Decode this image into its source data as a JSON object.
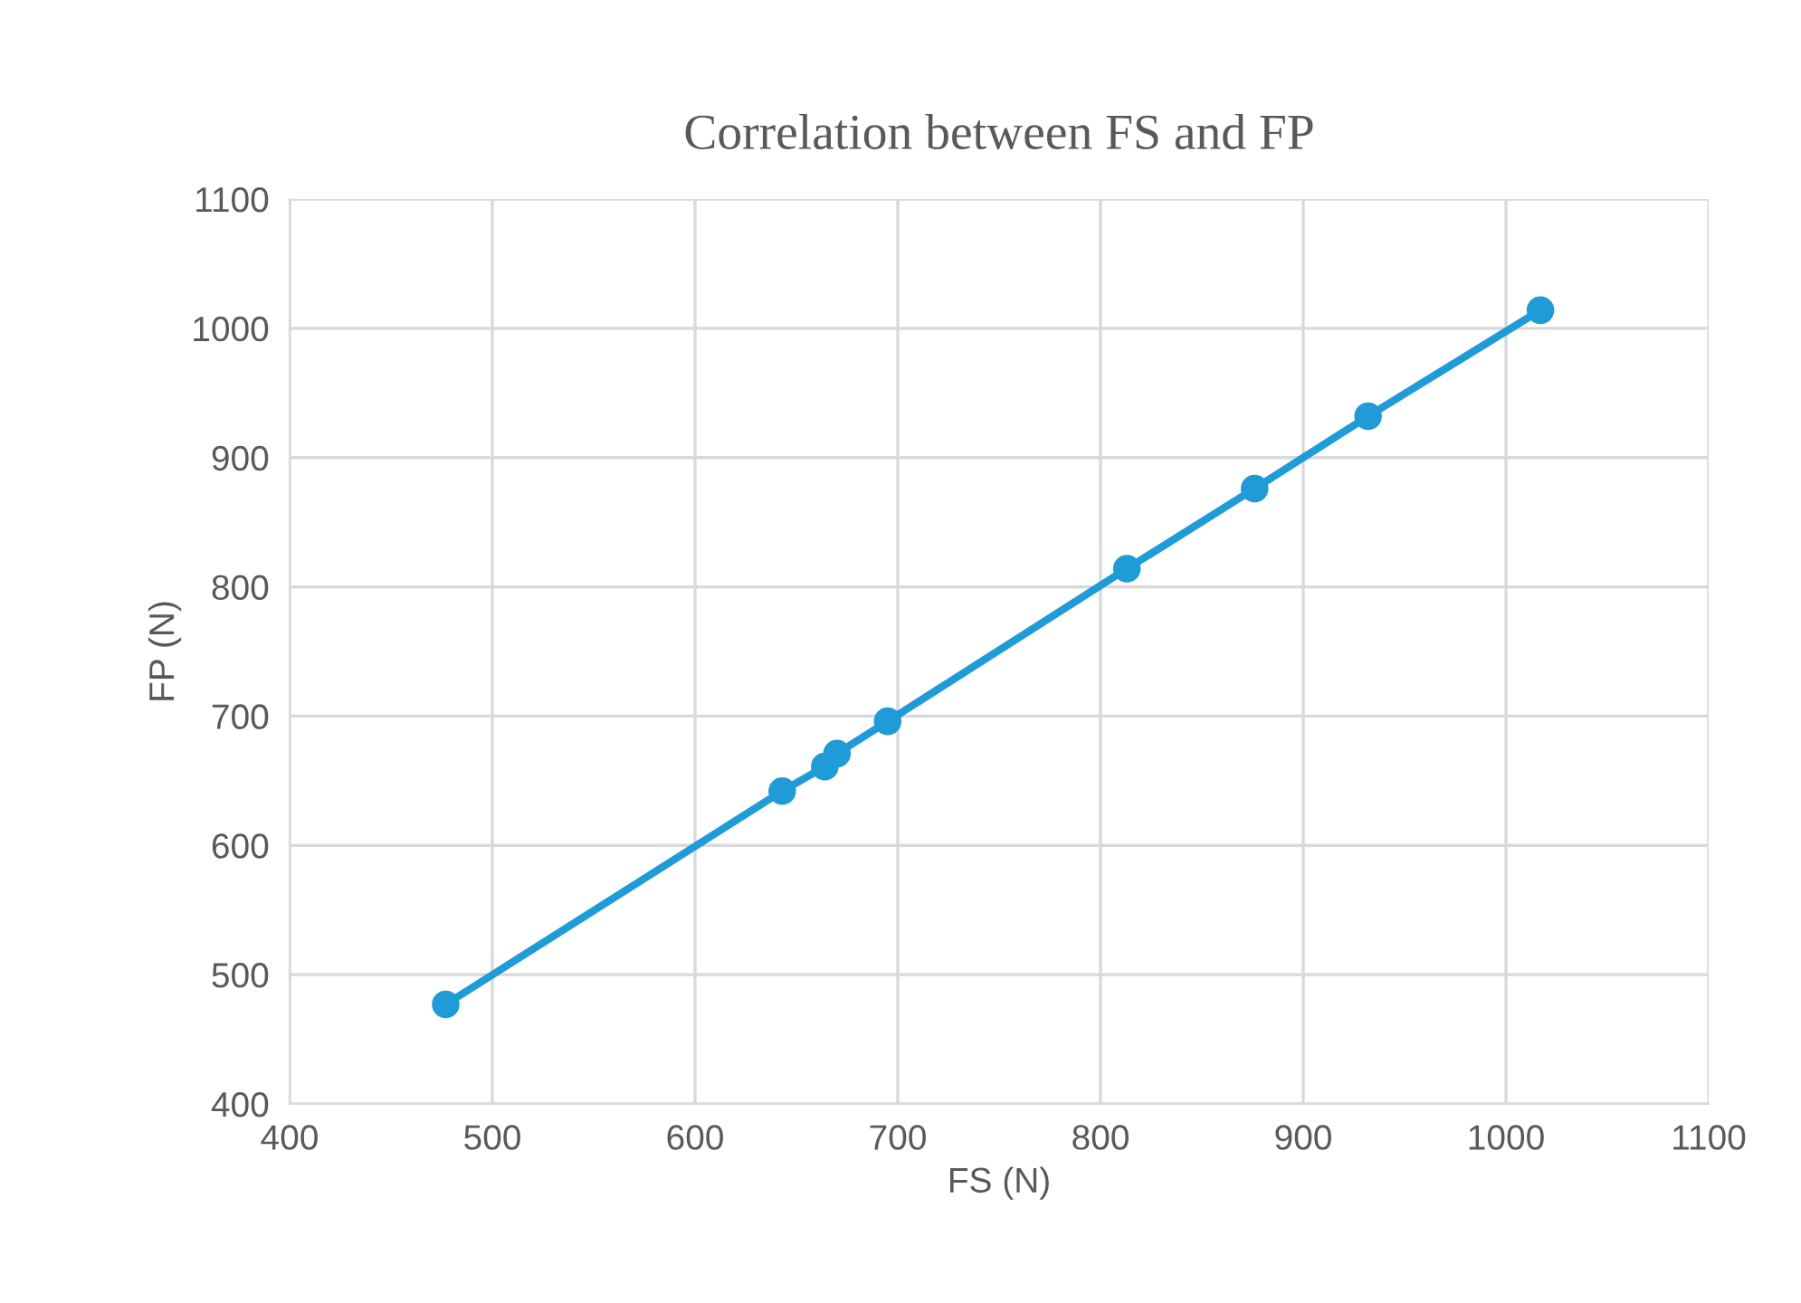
{
  "chart_data": {
    "type": "line",
    "title": "Correlation between FS and FP",
    "xlabel": "FS (N)",
    "ylabel": "FP (N)",
    "x": [
      477,
      643,
      664,
      670,
      695,
      813,
      876,
      932,
      1017
    ],
    "series": [
      {
        "color": "#1f9bd7",
        "values": [
          477,
          642,
          661,
          671,
          696,
          814,
          876,
          932,
          1014
        ]
      }
    ],
    "xlim": [
      400,
      1100
    ],
    "xticks": [
      400,
      500,
      600,
      700,
      800,
      900,
      1000,
      1100
    ],
    "ylim": [
      400,
      1100
    ],
    "yticks": [
      400,
      500,
      600,
      700,
      800,
      900,
      1000,
      1100
    ],
    "grid": true,
    "marker": "circle",
    "line_style": "solid",
    "legend": false
  }
}
